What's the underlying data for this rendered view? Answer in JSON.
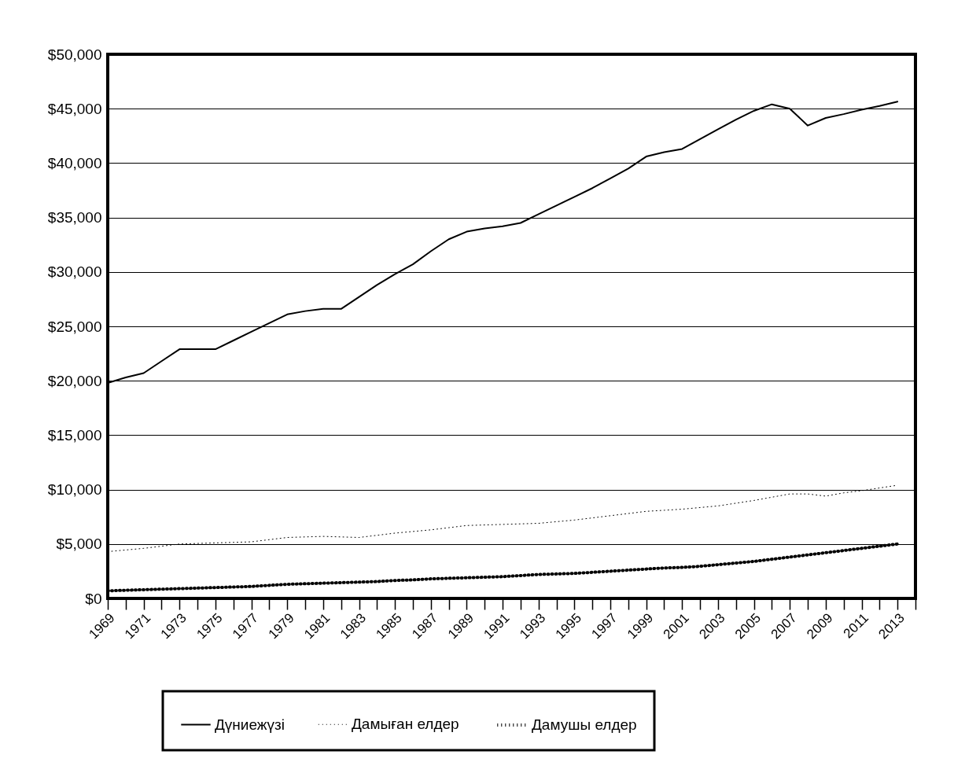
{
  "chart_data": {
    "type": "line",
    "x": [
      1969,
      1970,
      1971,
      1972,
      1973,
      1974,
      1975,
      1976,
      1977,
      1978,
      1979,
      1980,
      1981,
      1982,
      1983,
      1984,
      1985,
      1986,
      1987,
      1988,
      1989,
      1990,
      1991,
      1992,
      1993,
      1994,
      1995,
      1996,
      1997,
      1998,
      1999,
      2000,
      2001,
      2002,
      2003,
      2004,
      2005,
      2006,
      2007,
      2008,
      2009,
      2010,
      2011,
      2012,
      2013
    ],
    "series": [
      {
        "name": "Дүниежүзі",
        "color": "#000000",
        "line_style": "solid",
        "values": [
          19800,
          20300,
          20700,
          21800,
          22900,
          22900,
          22900,
          23700,
          24500,
          25300,
          26100,
          26400,
          26600,
          26600,
          27700,
          28800,
          29800,
          30700,
          31900,
          33000,
          33700,
          34000,
          34200,
          34500,
          35300,
          36100,
          36900,
          37700,
          38600,
          39500,
          40600,
          41000,
          41300,
          42200,
          43100,
          44000,
          44800,
          45400,
          45000,
          43450,
          44150,
          44500,
          44900,
          45250,
          45650
        ]
      },
      {
        "name": "Дамыған елдер",
        "color": "#000000",
        "line_style": "dotted",
        "values": [
          4300,
          4450,
          4600,
          4800,
          5000,
          5050,
          5100,
          5150,
          5200,
          5400,
          5600,
          5650,
          5700,
          5650,
          5600,
          5800,
          6000,
          6150,
          6300,
          6500,
          6700,
          6750,
          6800,
          6850,
          6900,
          7050,
          7200,
          7400,
          7600,
          7800,
          8000,
          8100,
          8200,
          8350,
          8500,
          8750,
          9000,
          9300,
          9600,
          9600,
          9400,
          9700,
          9900,
          10150,
          10400
        ]
      },
      {
        "name": "Дамушы елдер",
        "color": "#000000",
        "line_style": "dotted",
        "values": [
          700,
          750,
          800,
          850,
          900,
          950,
          1000,
          1050,
          1100,
          1200,
          1300,
          1350,
          1400,
          1450,
          1500,
          1550,
          1650,
          1700,
          1800,
          1850,
          1900,
          1950,
          2000,
          2100,
          2200,
          2250,
          2300,
          2400,
          2500,
          2600,
          2700,
          2800,
          2850,
          2950,
          3100,
          3250,
          3400,
          3600,
          3800,
          4000,
          4200,
          4400,
          4600,
          4800,
          5000
        ]
      }
    ],
    "ylim": [
      0,
      50000
    ],
    "yticks": [
      {
        "value": 0,
        "label": "$0"
      },
      {
        "value": 5000,
        "label": "$5,000"
      },
      {
        "value": 10000,
        "label": "$10,000"
      },
      {
        "value": 15000,
        "label": "$15,000"
      },
      {
        "value": 20000,
        "label": "$20,000"
      },
      {
        "value": 25000,
        "label": "$25,000"
      },
      {
        "value": 30000,
        "label": "$30,000"
      },
      {
        "value": 35000,
        "label": "$35,000"
      },
      {
        "value": 40000,
        "label": "$40,000"
      },
      {
        "value": 45000,
        "label": "$45,000"
      },
      {
        "value": 50000,
        "label": "$50,000"
      }
    ],
    "xlim": [
      1969,
      2014
    ],
    "xticks": [
      1969,
      {
        "value": 1970,
        "label": null
      },
      1971,
      {
        "value": 1972,
        "label": null
      },
      1973,
      {
        "value": 1974,
        "label": null
      },
      1975,
      {
        "value": 1976,
        "label": null
      },
      1977,
      {
        "value": 1978,
        "label": null
      },
      1979,
      {
        "value": 1980,
        "label": null
      },
      1981,
      {
        "value": 1982,
        "label": null
      },
      1983,
      {
        "value": 1984,
        "label": null
      },
      1985,
      {
        "value": 1986,
        "label": null
      },
      1987,
      {
        "value": 1988,
        "label": null
      },
      1989,
      {
        "value": 1990,
        "label": null
      },
      1991,
      {
        "value": 1992,
        "label": null
      },
      1993,
      {
        "value": 1994,
        "label": null
      },
      1995,
      {
        "value": 1996,
        "label": null
      },
      1997,
      {
        "value": 1998,
        "label": null
      },
      1999,
      {
        "value": 2000,
        "label": null
      },
      2001,
      {
        "value": 2002,
        "label": null
      },
      2003,
      {
        "value": 2004,
        "label": null
      },
      2005,
      {
        "value": 2006,
        "label": null
      },
      2007,
      {
        "value": 2008,
        "label": null
      },
      2009,
      {
        "value": 2010,
        "label": null
      },
      2011,
      {
        "value": 2012,
        "label": null
      },
      2013,
      {
        "value": 2014,
        "label": null
      }
    ],
    "grid": "y",
    "legend": "bottom",
    "marker": "none"
  }
}
